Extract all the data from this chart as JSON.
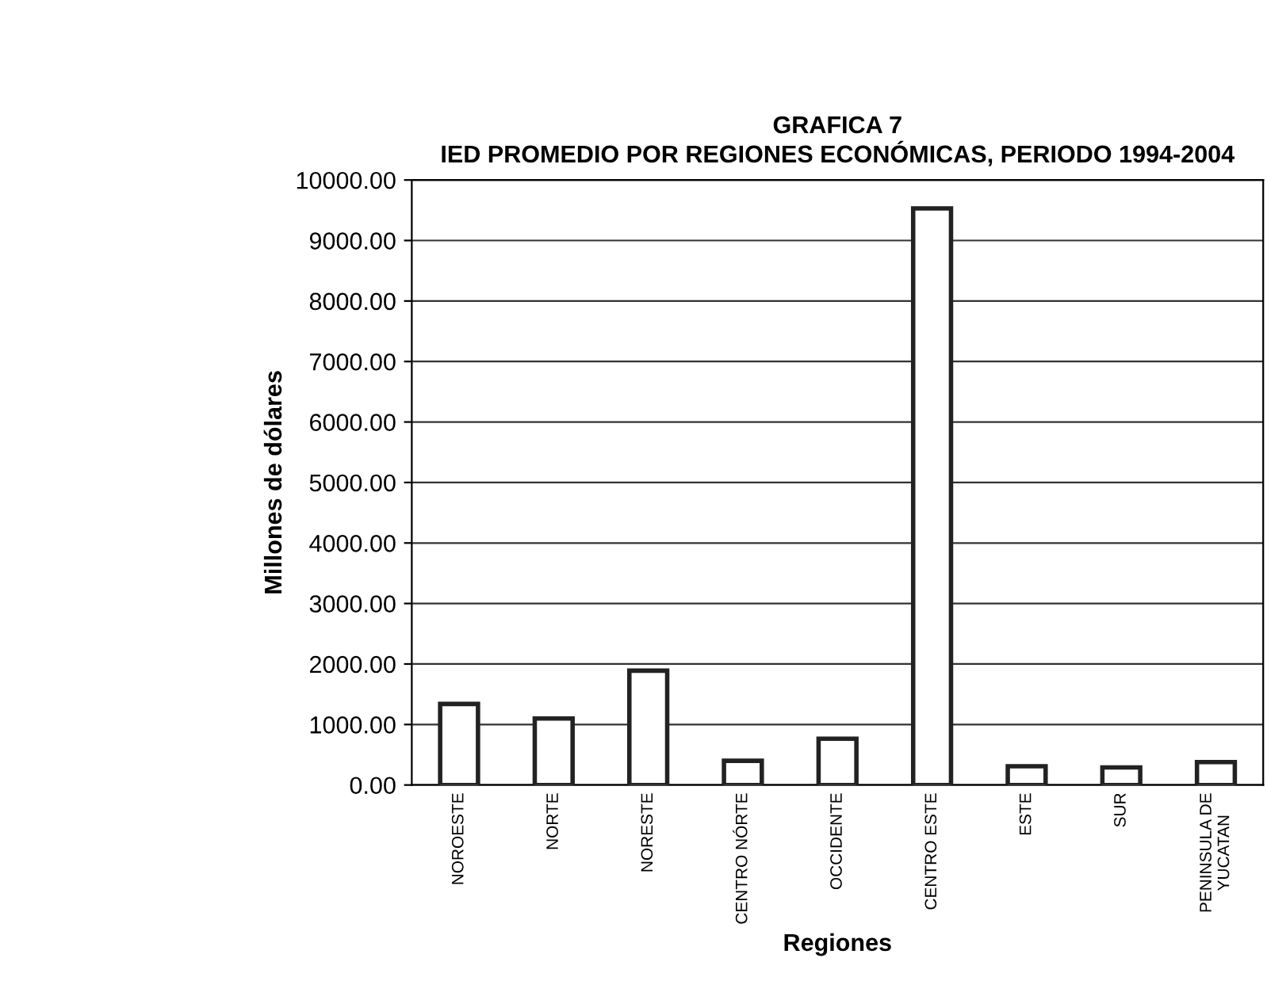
{
  "chart_data": {
    "type": "bar",
    "title": "GRAFICA 7\nIED PROMEDIO POR REGIONES ECONÓMICAS, PERIODO 1994-2004",
    "xlabel": "Regiones",
    "ylabel": "Millones de dólares",
    "categories": [
      "NOROESTE",
      "NORTE",
      "NORESTE",
      "CENTRO NÓRTE",
      "OCCIDENTE",
      "CENTRO ESTE",
      "ESTE",
      "SUR",
      "PENINSULA DE\nYUCATAN"
    ],
    "values": [
      1340,
      1100,
      1890,
      400,
      765,
      9530,
      310,
      290,
      380
    ],
    "color": "#ffffff",
    "ylim": [
      0,
      10000
    ],
    "yticks": [
      {
        "value": 0,
        "label": "0.00"
      },
      {
        "value": 1000,
        "label": "1000.00"
      },
      {
        "value": 2000,
        "label": "2000.00"
      },
      {
        "value": 3000,
        "label": "3000.00"
      },
      {
        "value": 4000,
        "label": "4000.00"
      },
      {
        "value": 5000,
        "label": "5000.00"
      },
      {
        "value": 6000,
        "label": "6000.00"
      },
      {
        "value": 7000,
        "label": "7000.00"
      },
      {
        "value": 8000,
        "label": "8000.00"
      },
      {
        "value": 9000,
        "label": "9000.00"
      },
      {
        "value": 10000,
        "label": "10000.00"
      }
    ],
    "grid": "y"
  }
}
